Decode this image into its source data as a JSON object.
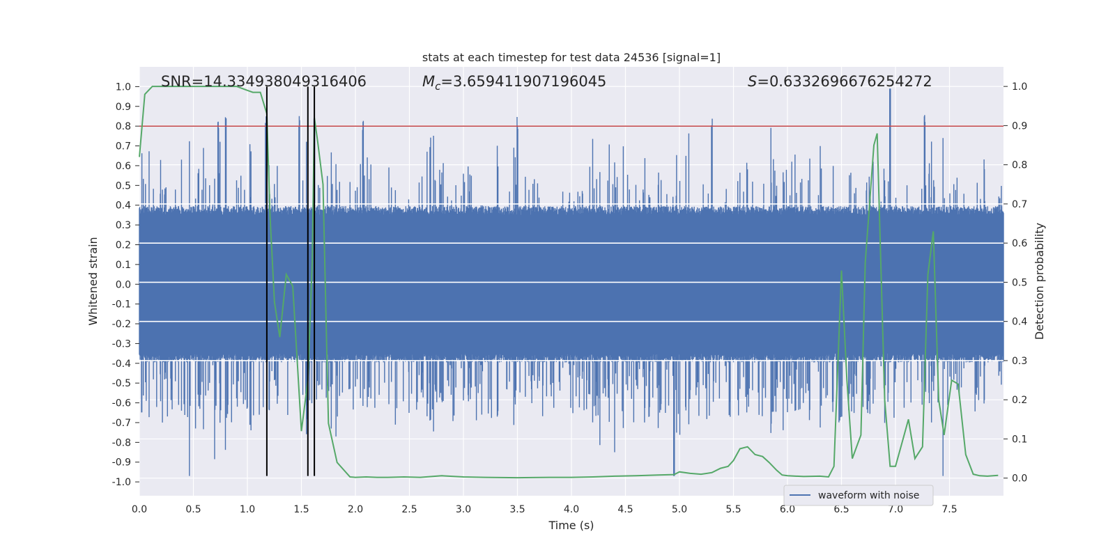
{
  "chart_data": {
    "type": "line",
    "title": "stats at each timestep for test data 24536 [signal=1]",
    "xlabel": "Time (s)",
    "ylabel": "Whitened strain",
    "y2label": "Detection probability",
    "xlim": [
      0.0,
      8.0
    ],
    "ylim": [
      -1.07,
      1.1
    ],
    "y2lim": [
      -0.045,
      1.05
    ],
    "xticks": [
      "0.0",
      "0.5",
      "1.0",
      "1.5",
      "2.0",
      "2.5",
      "3.0",
      "3.5",
      "4.0",
      "4.5",
      "5.0",
      "5.5",
      "6.0",
      "6.5",
      "7.0",
      "7.5"
    ],
    "yticks": [
      "1.0",
      "0.9",
      "0.8",
      "0.7",
      "0.6",
      "0.5",
      "0.4",
      "0.3",
      "0.2",
      "0.1",
      "0.0",
      "-0.1",
      "-0.2",
      "-0.3",
      "-0.4",
      "-0.5",
      "-0.6",
      "-0.7",
      "-0.8",
      "-0.9",
      "-1.0"
    ],
    "y2ticks": [
      "1.0",
      "0.9",
      "0.8",
      "0.7",
      "0.6",
      "0.5",
      "0.4",
      "0.3",
      "0.2",
      "0.1",
      "0.0"
    ],
    "annotations": {
      "snr": "SNR=14.334938049316406",
      "mc_symbol": "M",
      "mc_sub": "c",
      "mc_value": "=3.659411907196045",
      "s_symbol": "S",
      "s_value": "=0.6332696676254272"
    },
    "legend": {
      "label": "waveform with noise",
      "placement": "lower-right"
    },
    "threshold": {
      "value": 0.8,
      "color": "#c44e52",
      "axis": "left"
    },
    "vlines": [
      1.18,
      1.56,
      1.62
    ],
    "waveform": {
      "name": "waveform with noise",
      "color": "#4c72b0",
      "typical_amplitude": 0.38,
      "max": 0.99,
      "min": -0.97,
      "spike_times": [
        0.73,
        0.8,
        1.17,
        1.48,
        1.62,
        2.07,
        3.5,
        5.3,
        6.95,
        7.27
      ],
      "seed": 24536
    },
    "probability": {
      "name": "detection probability",
      "color": "#55a868",
      "x": [
        0.0,
        0.05,
        0.12,
        0.3,
        0.5,
        0.7,
        0.9,
        1.0,
        1.05,
        1.12,
        1.18,
        1.21,
        1.25,
        1.3,
        1.36,
        1.42,
        1.5,
        1.56,
        1.6,
        1.62,
        1.65,
        1.7,
        1.75,
        1.83,
        1.95,
        2.0,
        2.1,
        2.2,
        2.3,
        2.45,
        2.6,
        2.8,
        3.0,
        3.2,
        3.5,
        3.8,
        4.0,
        4.2,
        4.4,
        4.6,
        4.8,
        4.95,
        5.0,
        5.1,
        5.2,
        5.3,
        5.38,
        5.45,
        5.5,
        5.56,
        5.63,
        5.7,
        5.77,
        5.83,
        5.9,
        5.95,
        6.0,
        6.15,
        6.3,
        6.38,
        6.43,
        6.5,
        6.55,
        6.6,
        6.68,
        6.72,
        6.8,
        6.83,
        6.9,
        6.95,
        7.0,
        7.07,
        7.12,
        7.18,
        7.25,
        7.3,
        7.35,
        7.4,
        7.45,
        7.52,
        7.58,
        7.65,
        7.72,
        7.78,
        7.85,
        7.95
      ],
      "y": [
        0.82,
        0.98,
        1.0,
        1.0,
        1.0,
        1.0,
        1.0,
        0.99,
        0.985,
        0.985,
        0.93,
        0.67,
        0.45,
        0.36,
        0.52,
        0.49,
        0.12,
        0.25,
        0.55,
        0.92,
        0.86,
        0.75,
        0.14,
        0.04,
        0.003,
        0.002,
        0.003,
        0.002,
        0.002,
        0.003,
        0.002,
        0.006,
        0.003,
        0.002,
        0.001,
        0.002,
        0.002,
        0.003,
        0.005,
        0.006,
        0.008,
        0.009,
        0.016,
        0.012,
        0.01,
        0.014,
        0.025,
        0.03,
        0.045,
        0.075,
        0.08,
        0.06,
        0.055,
        0.04,
        0.02,
        0.008,
        0.006,
        0.004,
        0.005,
        0.003,
        0.03,
        0.53,
        0.25,
        0.05,
        0.11,
        0.55,
        0.85,
        0.88,
        0.2,
        0.03,
        0.03,
        0.1,
        0.15,
        0.05,
        0.08,
        0.52,
        0.63,
        0.2,
        0.11,
        0.25,
        0.24,
        0.06,
        0.01,
        0.006,
        0.005,
        0.007
      ]
    }
  }
}
